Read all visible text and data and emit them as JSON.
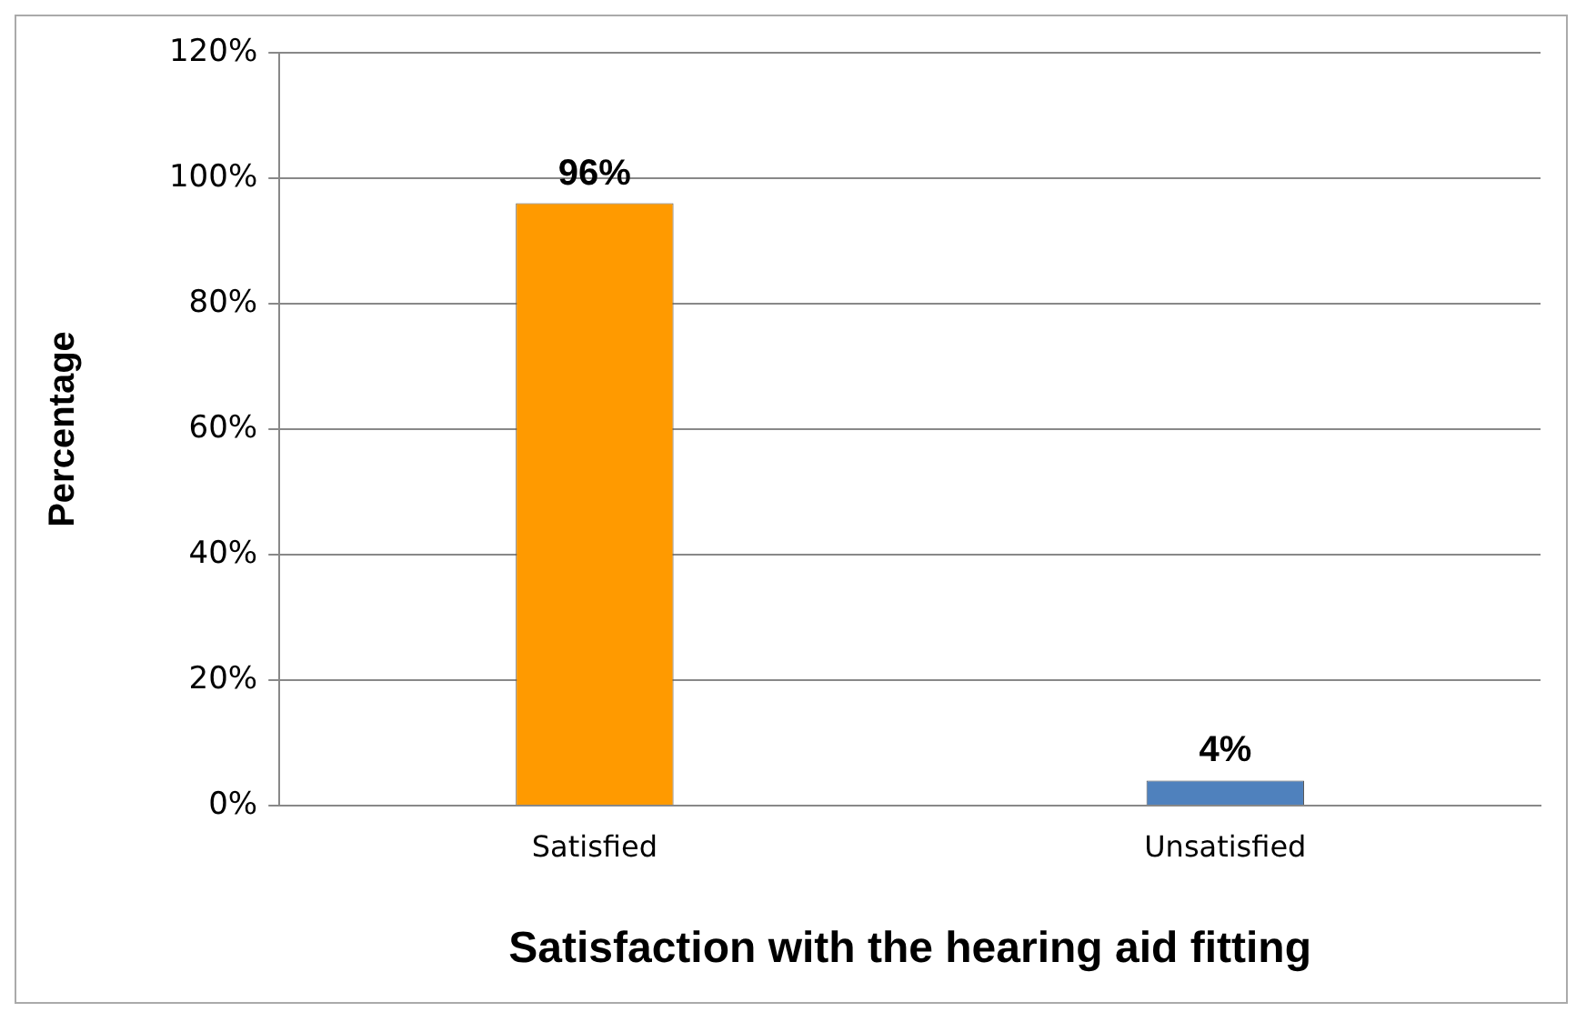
{
  "chart_data": {
    "type": "bar",
    "xlabel": "Satisfaction with the hearing aid fitting",
    "ylabel": "Percentage",
    "categories": [
      "Satisfied",
      "Unsatisfied"
    ],
    "values": [
      96,
      4
    ],
    "colors": [
      "#ff9a00",
      "#4f81bd"
    ],
    "value_labels": [
      "96%",
      "4%"
    ],
    "ylim": [
      0,
      120
    ],
    "yticks": [
      {
        "value": 0,
        "label": "0%"
      },
      {
        "value": 20,
        "label": "20%"
      },
      {
        "value": 40,
        "label": "40%"
      },
      {
        "value": 60,
        "label": "60%"
      },
      {
        "value": 80,
        "label": "80%"
      },
      {
        "value": 100,
        "label": "100%"
      },
      {
        "value": 120,
        "label": "120%"
      }
    ],
    "grid": "y",
    "legend": false
  }
}
